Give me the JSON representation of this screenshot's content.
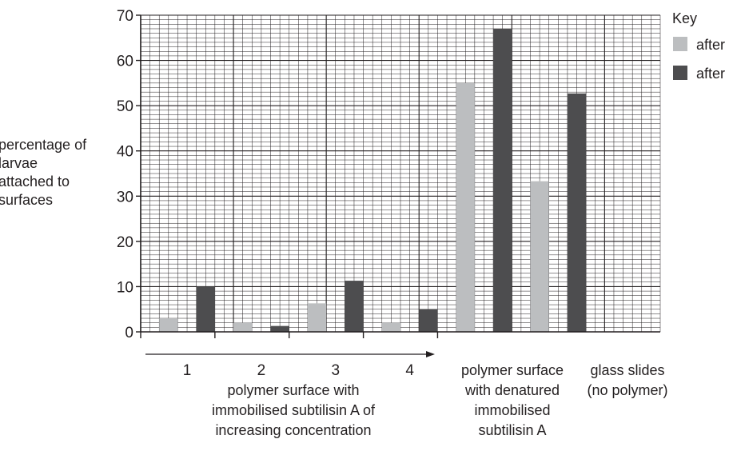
{
  "chart_data": {
    "type": "bar",
    "ylabel_lines": [
      "percentage of",
      "larvae",
      "attached to",
      "surfaces"
    ],
    "ylim": [
      0,
      70
    ],
    "yticks": [
      0,
      10,
      20,
      30,
      40,
      50,
      60,
      70
    ],
    "grid": true,
    "legend": {
      "title": "Key",
      "placement": "top-right",
      "entries": [
        "after",
        "after"
      ]
    },
    "categories": [
      {
        "label": "1",
        "values": [
          3,
          10
        ]
      },
      {
        "label": "2",
        "values": [
          2,
          1.3
        ]
      },
      {
        "label": "3",
        "values": [
          6.3,
          11.3
        ]
      },
      {
        "label": "4",
        "values": [
          2,
          5
        ]
      },
      {
        "label": "",
        "values": [
          55,
          67
        ]
      },
      {
        "label": "",
        "values": [
          33.3,
          52.7
        ]
      }
    ],
    "series_colors": [
      "#bcbec0",
      "#4d4d4f"
    ],
    "group_labels": [
      {
        "lines": [
          "polymer surface with",
          "immobilised subtilisin A of",
          "increasing concentration"
        ]
      },
      {
        "lines": [
          "polymer surface",
          "with denatured",
          "immobilised",
          "subtilisin A"
        ]
      },
      {
        "lines": [
          "glass slides",
          "(no polymer)"
        ]
      }
    ]
  }
}
